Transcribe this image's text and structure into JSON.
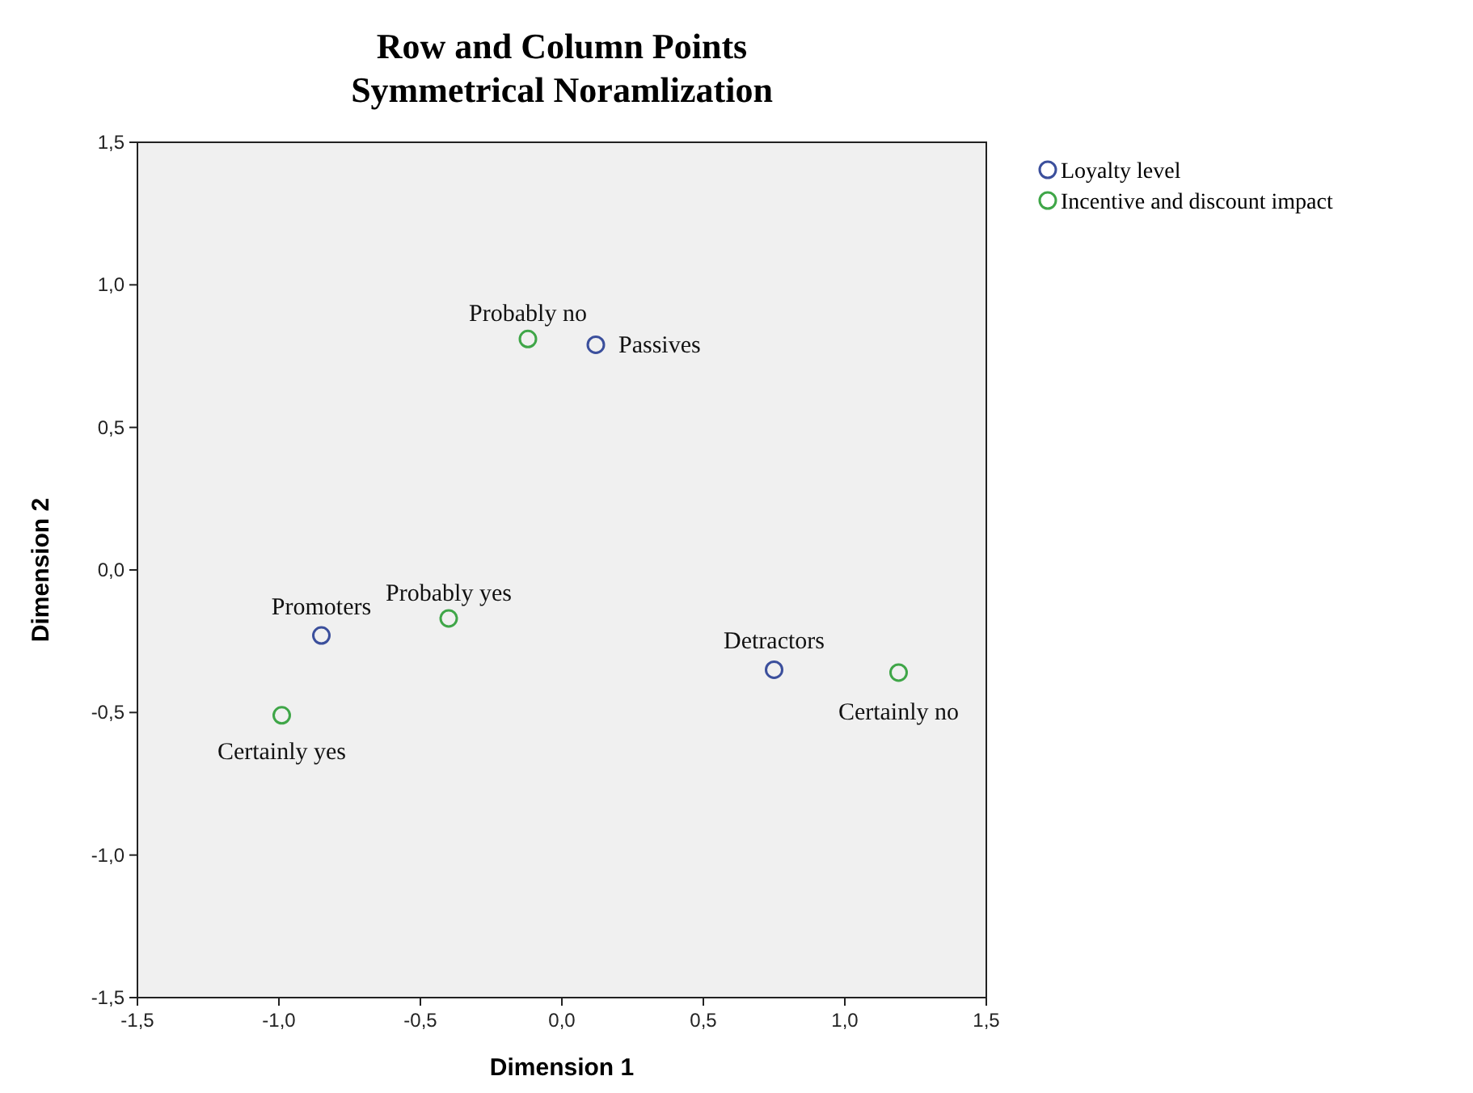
{
  "chart_data": {
    "type": "scatter",
    "title": "Row and Column Points\nSymmetrical Noramlization",
    "xlabel": "Dimension 1",
    "ylabel": "Dimension 2",
    "xlim": [
      -1.5,
      1.5
    ],
    "ylim": [
      -1.5,
      1.5
    ],
    "xticks": [
      {
        "value": -1.5,
        "label": "-1,5"
      },
      {
        "value": -1,
        "label": "-1,0"
      },
      {
        "value": -0.5,
        "label": "-0,5"
      },
      {
        "value": 0,
        "label": "0,0"
      },
      {
        "value": 0.5,
        "label": "0,5"
      },
      {
        "value": 1,
        "label": "1,0"
      },
      {
        "value": 1.5,
        "label": "1,5"
      }
    ],
    "yticks": [
      {
        "value": -1.5,
        "label": "-1,5"
      },
      {
        "value": -1,
        "label": "-1,0"
      },
      {
        "value": -0.5,
        "label": "-0,5"
      },
      {
        "value": 0,
        "label": "0,0"
      },
      {
        "value": 0.5,
        "label": "0,5"
      },
      {
        "value": 1,
        "label": "1,0"
      },
      {
        "value": 1.5,
        "label": "1,5"
      }
    ],
    "grid": false,
    "legend": "top right",
    "marker": "circle",
    "series": [
      {
        "name": "Loyalty level",
        "color": "#3b4f9c",
        "x": [
          0.12,
          -0.85,
          0.75
        ],
        "values": [
          0.79,
          -0.23,
          -0.35
        ]
      },
      {
        "name": "Incentive and discount impact",
        "color": "#3fa648",
        "x": [
          -0.12,
          -0.4,
          -0.99,
          1.19
        ],
        "values": [
          0.81,
          -0.17,
          -0.51,
          -0.36
        ]
      }
    ],
    "annotations": [
      {
        "text": "Passives",
        "x": 0.12,
        "y": 0.79
      },
      {
        "text": "Promoters",
        "x": -0.85,
        "y": -0.23
      },
      {
        "text": "Detractors",
        "x": 0.75,
        "y": -0.35
      },
      {
        "text": "Probably no",
        "x": -0.12,
        "y": 0.81
      },
      {
        "text": "Probably yes",
        "x": -0.4,
        "y": -0.17
      },
      {
        "text": "Certainly yes",
        "x": -0.99,
        "y": -0.51
      },
      {
        "text": "Certainly no",
        "x": 1.19,
        "y": -0.36
      }
    ]
  }
}
